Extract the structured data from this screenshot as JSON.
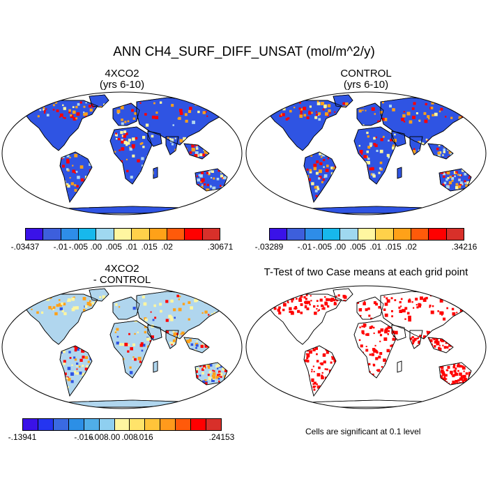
{
  "title": "ANN CH4_SURF_DIFF_UNSAT (mol/m^2/y)",
  "panels": {
    "p1": {
      "title": "4XCO2",
      "subtitle": "(yrs 6-10)"
    },
    "p2": {
      "title": "CONTROL",
      "subtitle": "(yrs 6-10)"
    },
    "p3": {
      "title": "4XCO2",
      "subtitle": "- CONTROL"
    },
    "p4": {
      "title": "T-Test of two Case means at each grid point"
    }
  },
  "legends": {
    "l1": {
      "colors": [
        "#3a12e8",
        "#3d5fdc",
        "#2e8de8",
        "#17b8ec",
        "#9fd8f0",
        "#fff6a0",
        "#ffd14a",
        "#ffa118",
        "#ff5a0a",
        "#ff0000",
        "#d8302a"
      ],
      "labels": [
        "-.03437",
        "-.01",
        "-.005",
        ".00",
        ".005",
        ".01",
        ".015",
        ".02",
        ".30671"
      ]
    },
    "l2": {
      "colors": [
        "#3a12e8",
        "#3d5fdc",
        "#2e8de8",
        "#17b8ec",
        "#9fd8f0",
        "#fff6a0",
        "#ffd14a",
        "#ffa118",
        "#ff5a0a",
        "#ff0000",
        "#d8302a"
      ],
      "labels": [
        "-.03289",
        "-.01",
        "-.005",
        ".00",
        ".005",
        ".01",
        ".015",
        ".02",
        ".34216"
      ]
    },
    "l3": {
      "colors": [
        "#3a12e8",
        "#2435f0",
        "#3a6ae2",
        "#2c8fe6",
        "#50aee8",
        "#8fcff0",
        "#fff6a0",
        "#ffe36a",
        "#ffc43a",
        "#ff9a1c",
        "#ff5a0a",
        "#ff0000",
        "#d8302a"
      ],
      "labels": [
        "-.13941",
        "-.016",
        "-.008",
        ".00",
        ".008",
        ".016",
        ".24153"
      ]
    }
  },
  "note": "Cells are significant at 0.1 level",
  "map_colors": {
    "blue": "#2f54e3",
    "yellow": "#fff6a0",
    "orange": "#ffa118",
    "red": "#ff0000",
    "lightblue": "#b0d6ee",
    "white": "#ffffff"
  }
}
